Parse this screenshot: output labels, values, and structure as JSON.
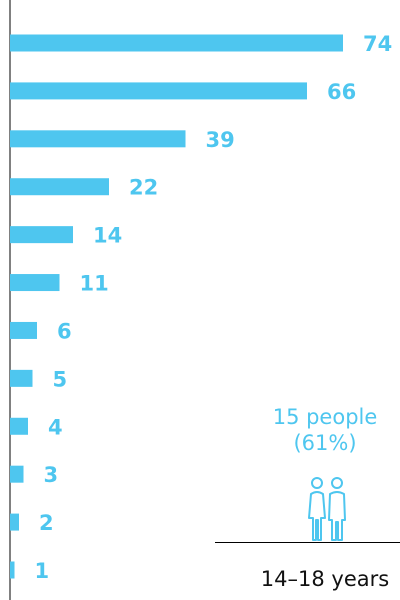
{
  "colors": {
    "bar": "#4ec6ef",
    "axis": "#000000",
    "text": "#111111"
  },
  "chart_data": {
    "type": "bar",
    "orientation": "horizontal",
    "values": [
      74,
      66,
      39,
      22,
      14,
      11,
      6,
      5,
      4,
      3,
      2,
      1
    ],
    "data_labels": [
      "74",
      "66",
      "39",
      "22",
      "14",
      "11",
      "6",
      "5",
      "4",
      "3",
      "2",
      "1"
    ],
    "xlim": [
      0,
      74
    ],
    "grid": false,
    "legend": "none"
  },
  "annotation": {
    "count": "15 people",
    "percent": "(61%)",
    "icon": "two-people-icon"
  },
  "group_label": "14–18 years"
}
